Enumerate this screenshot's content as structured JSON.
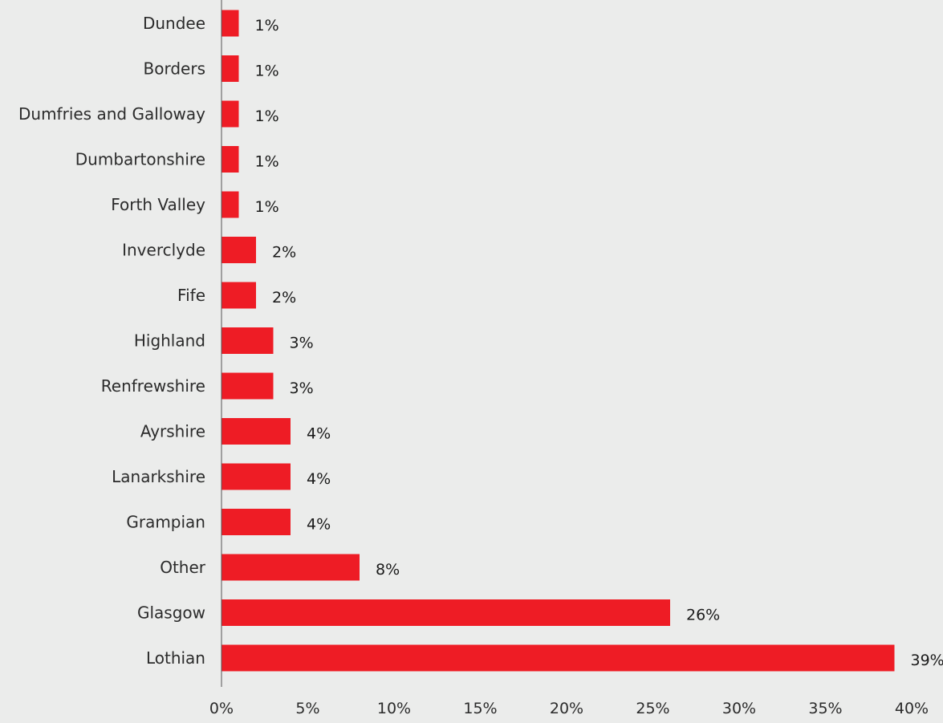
{
  "chart_data": {
    "type": "bar",
    "orientation": "horizontal",
    "categories": [
      "Dundee",
      "Borders",
      "Dumfries and Galloway",
      "Dumbartonshire",
      "Forth Valley",
      "Inverclyde",
      "Fife",
      "Highland",
      "Renfrewshire",
      "Ayrshire",
      "Lanarkshire",
      "Grampian",
      "Other",
      "Glasgow",
      "Lothian"
    ],
    "values": [
      1,
      1,
      1,
      1,
      1,
      2,
      2,
      3,
      3,
      4,
      4,
      4,
      8,
      26,
      39
    ],
    "value_labels": [
      "1%",
      "1%",
      "1%",
      "1%",
      "1%",
      "2%",
      "2%",
      "3%",
      "3%",
      "4%",
      "4%",
      "4%",
      "8%",
      "26%",
      "39%"
    ],
    "xticks": [
      0,
      5,
      10,
      15,
      20,
      25,
      30,
      35,
      40
    ],
    "xtick_labels": [
      "0%",
      "5%",
      "10%",
      "15%",
      "20%",
      "25%",
      "30%",
      "35%",
      "40%"
    ],
    "xlim": [
      0,
      40
    ],
    "grid": false,
    "title": "",
    "xlabel": "",
    "ylabel": ""
  },
  "colors": {
    "bar": "#ee1c25",
    "background": "#ebeceb",
    "axis": "#555555"
  }
}
